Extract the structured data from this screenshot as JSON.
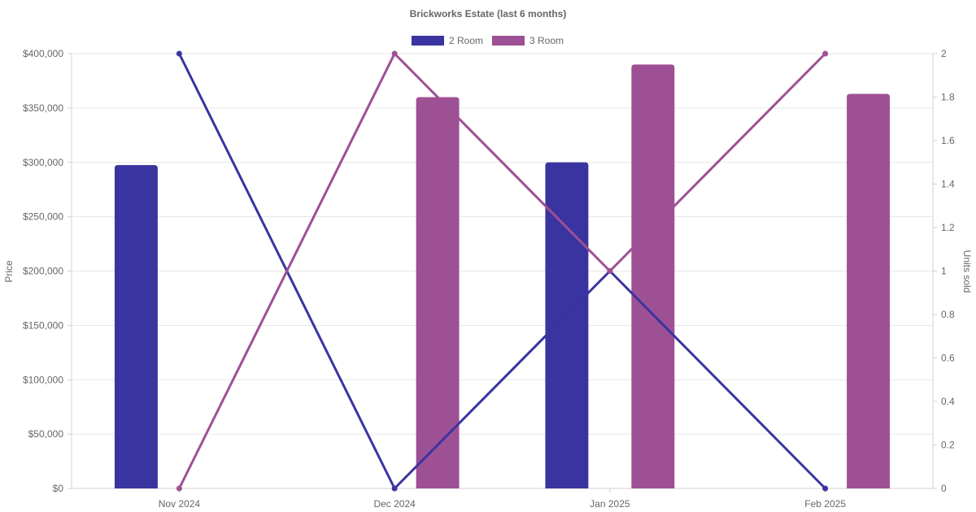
{
  "chart_data": {
    "type": "bar",
    "title": "Brickworks Estate (last 6 months)",
    "categories": [
      "Nov 2024",
      "Dec 2024",
      "Jan 2025",
      "Feb 2025"
    ],
    "y_left": {
      "label": "Price",
      "range": [
        0,
        400000
      ],
      "ticks": [
        0,
        50000,
        100000,
        150000,
        200000,
        250000,
        300000,
        350000,
        400000
      ],
      "tick_labels": [
        "$0",
        "$50,000",
        "$100,000",
        "$150,000",
        "$200,000",
        "$250,000",
        "$300,000",
        "$350,000",
        "$400,000"
      ]
    },
    "y_right": {
      "label": "Units sold",
      "range": [
        0,
        2
      ],
      "ticks": [
        0,
        0.2,
        0.4,
        0.6,
        0.8,
        1,
        1.2,
        1.4,
        1.6,
        1.8,
        2
      ],
      "tick_labels": [
        "0",
        "0.2",
        "0.4",
        "0.6",
        "0.8",
        "1",
        "1.2",
        "1.4",
        "1.6",
        "1.8",
        "2"
      ]
    },
    "grid": true,
    "legend_position": "top-center",
    "series": [
      {
        "name": "2 Room",
        "color": "#3a34a0",
        "price": [
          297500,
          null,
          300000,
          null
        ],
        "units_sold": [
          2,
          0,
          1,
          0
        ]
      },
      {
        "name": "3 Room",
        "color": "#9e5094",
        "price": [
          null,
          360000,
          390000,
          363000
        ],
        "units_sold": [
          0,
          2,
          1,
          2
        ]
      }
    ]
  }
}
